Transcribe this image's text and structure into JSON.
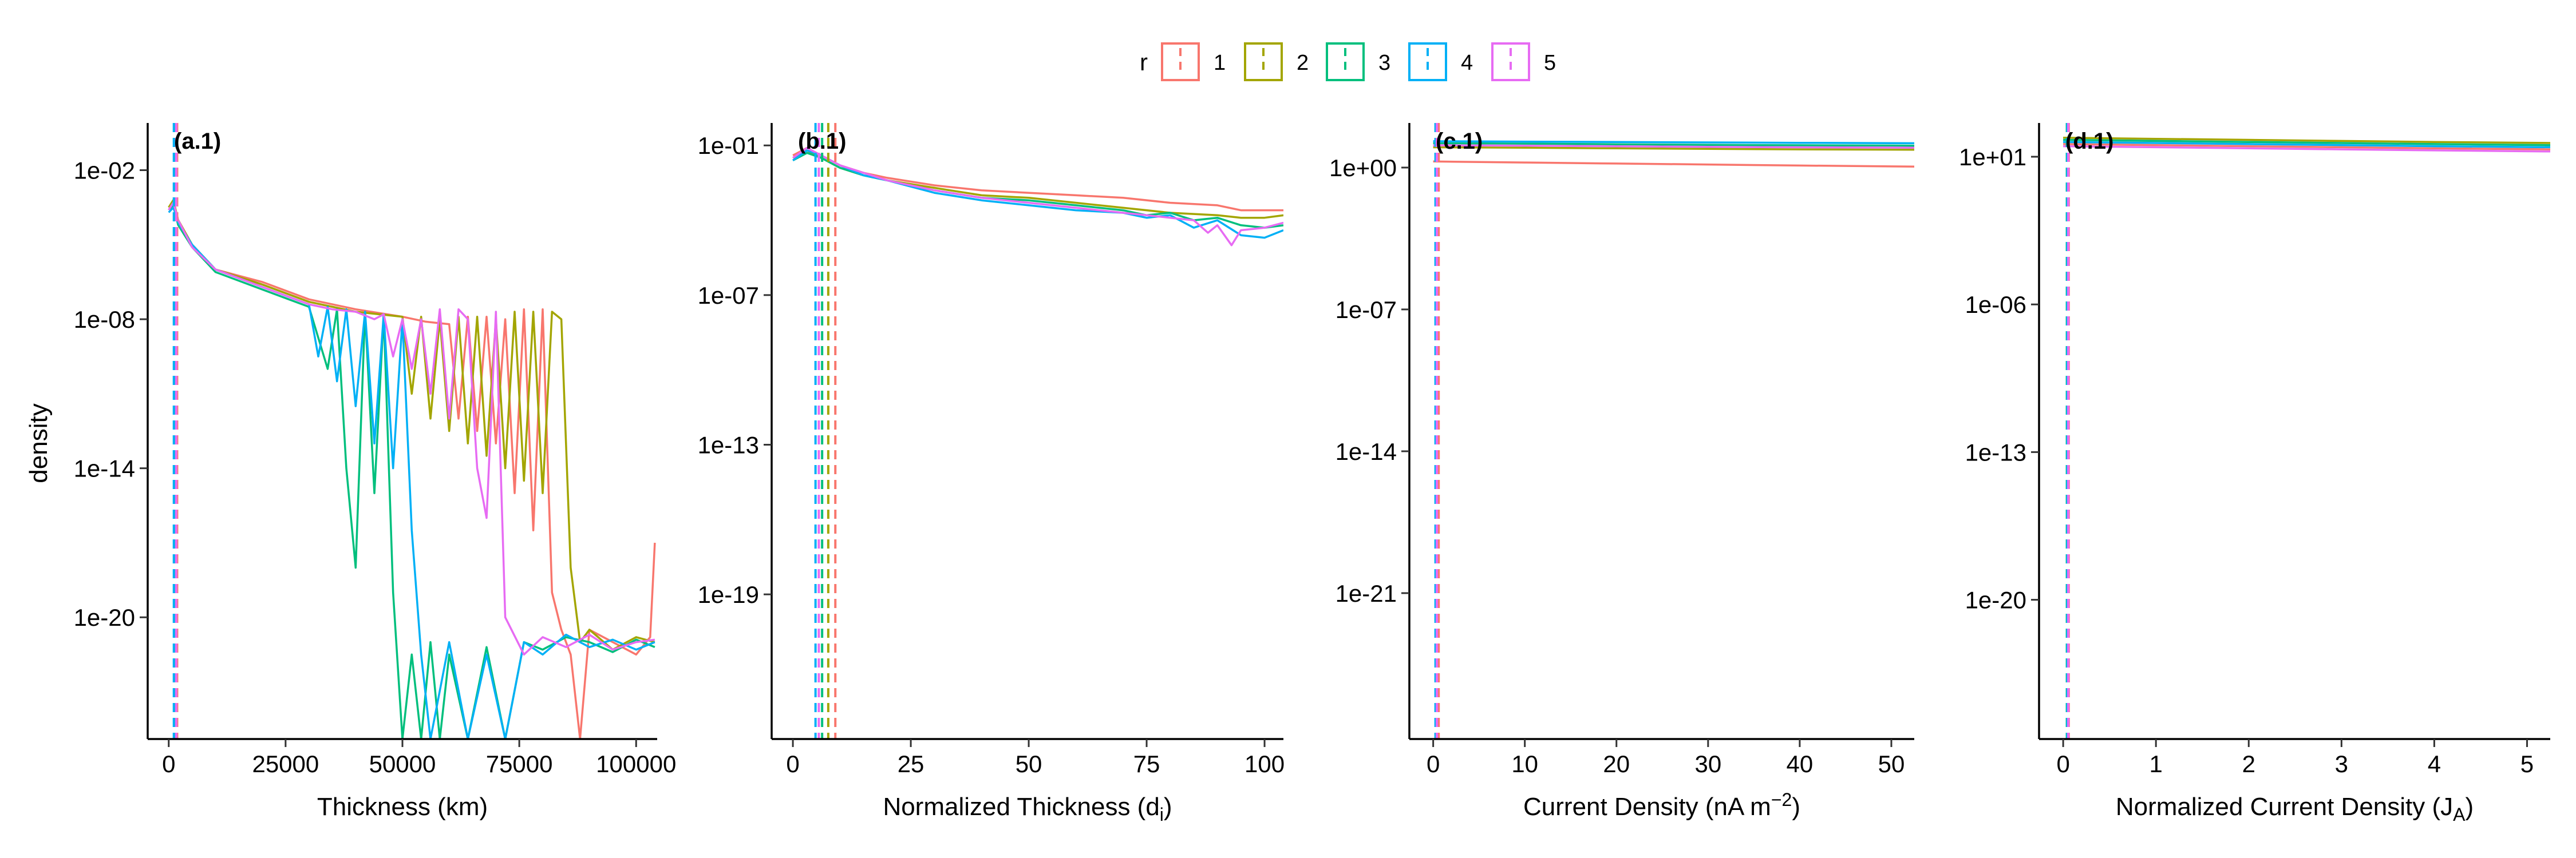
{
  "legend": {
    "title": "r",
    "entries": [
      {
        "label": "1",
        "color": "#F8766D"
      },
      {
        "label": "2",
        "color": "#A3A500"
      },
      {
        "label": "3",
        "color": "#00BF7D"
      },
      {
        "label": "4",
        "color": "#00B0F6"
      },
      {
        "label": "5",
        "color": "#E76BF3"
      }
    ],
    "position": "top-center",
    "key": "dashed vertical line in box"
  },
  "shared_ylabel": "density",
  "chart_data": [
    {
      "type": "line",
      "panel_label": "(a.1)",
      "xlabel": "Thickness (km)",
      "ylabel": "density",
      "y_scale": "log10",
      "xlim": [
        -4500,
        104500
      ],
      "ylim_log10": [
        -24.9,
        -0.1
      ],
      "x_ticks": [
        0,
        25000,
        50000,
        75000,
        100000
      ],
      "x_tick_labels": [
        "0",
        "25000",
        "50000",
        "75000",
        "100000"
      ],
      "y_ticks_log10": [
        -2,
        -8,
        -14,
        -20
      ],
      "y_tick_labels": [
        "1e-02",
        "1e-08",
        "1e-14",
        "1e-20"
      ],
      "vlines": [
        {
          "series": "1",
          "x": 1800
        },
        {
          "series": "2",
          "x": 1500
        },
        {
          "series": "3",
          "x": 1300
        },
        {
          "series": "4",
          "x": 1100
        },
        {
          "series": "5",
          "x": 1600
        }
      ],
      "series": [
        {
          "name": "1",
          "x": [
            0,
            1000,
            2000,
            5000,
            10000,
            20000,
            30000,
            40000,
            50000,
            55000,
            60000,
            62000,
            64000,
            66000,
            68000,
            70000,
            72000,
            74000,
            76000,
            78000,
            80000,
            82000,
            84000,
            86000,
            88000,
            90000,
            95000,
            100000,
            103000,
            104000
          ],
          "y_log10": [
            -3.6,
            -3.3,
            -4.0,
            -5.0,
            -6.0,
            -6.5,
            -7.2,
            -7.6,
            -7.9,
            -8.1,
            -8.2,
            -12.0,
            -7.9,
            -12.5,
            -7.9,
            -13.0,
            -8.0,
            -15.0,
            -7.6,
            -16.5,
            -7.6,
            -19.0,
            -20.5,
            -21.5,
            -24.9,
            -20.5,
            -21.0,
            -21.5,
            -20.8,
            -17.0
          ]
        },
        {
          "name": "2",
          "x": [
            0,
            1000,
            2000,
            5000,
            10000,
            20000,
            30000,
            40000,
            50000,
            52000,
            54000,
            56000,
            58000,
            60000,
            62000,
            64000,
            66000,
            68000,
            70000,
            72000,
            74000,
            76000,
            78000,
            80000,
            82000,
            84000,
            86000,
            88000,
            90000,
            95000,
            100000,
            104000
          ],
          "y_log10": [
            -3.5,
            -3.2,
            -4.0,
            -5.0,
            -6.0,
            -6.6,
            -7.3,
            -7.7,
            -7.9,
            -11.0,
            -7.9,
            -12.0,
            -8.0,
            -12.5,
            -7.9,
            -13.0,
            -7.9,
            -13.5,
            -8.0,
            -14.0,
            -7.7,
            -14.5,
            -7.7,
            -15.0,
            -7.7,
            -8.0,
            -18.0,
            -21.0,
            -20.5,
            -21.3,
            -20.8,
            -21.0
          ]
        },
        {
          "name": "3",
          "x": [
            0,
            1000,
            2000,
            5000,
            10000,
            20000,
            30000,
            34000,
            36000,
            38000,
            40000,
            42000,
            44000,
            46000,
            48000,
            50000,
            52000,
            54000,
            56000,
            58000,
            60000,
            64000,
            68000,
            72000,
            76000,
            80000,
            85000,
            90000,
            95000,
            100000,
            104000
          ],
          "y_log10": [
            -3.6,
            -3.4,
            -4.2,
            -5.1,
            -6.1,
            -6.8,
            -7.5,
            -10.0,
            -7.6,
            -14.0,
            -18.0,
            -7.7,
            -15.0,
            -7.8,
            -19.0,
            -24.9,
            -21.5,
            -24.9,
            -21.0,
            -24.9,
            -21.5,
            -24.9,
            -21.2,
            -24.9,
            -21.0,
            -21.3,
            -20.8,
            -21.0,
            -21.4,
            -20.9,
            -21.2
          ]
        },
        {
          "name": "4",
          "x": [
            0,
            1000,
            2000,
            5000,
            10000,
            20000,
            30000,
            32000,
            34000,
            36000,
            38000,
            40000,
            42000,
            44000,
            46000,
            48000,
            50000,
            52000,
            54000,
            56000,
            60000,
            64000,
            68000,
            72000,
            76000,
            80000,
            85000,
            90000,
            95000,
            100000,
            104000
          ],
          "y_log10": [
            -3.7,
            -3.5,
            -4.1,
            -5.0,
            -6.0,
            -6.7,
            -7.4,
            -9.5,
            -7.5,
            -10.5,
            -7.6,
            -11.5,
            -7.7,
            -13.0,
            -7.8,
            -14.0,
            -8.0,
            -16.5,
            -21.5,
            -24.9,
            -21.0,
            -24.9,
            -21.5,
            -24.9,
            -21.0,
            -21.5,
            -20.7,
            -21.2,
            -20.9,
            -21.3,
            -21.0
          ]
        },
        {
          "name": "5",
          "x": [
            0,
            1000,
            2000,
            5000,
            10000,
            20000,
            30000,
            35000,
            40000,
            44000,
            46000,
            48000,
            50000,
            52000,
            54000,
            56000,
            58000,
            60000,
            62000,
            64000,
            66000,
            68000,
            70000,
            72000,
            76000,
            80000,
            85000,
            90000,
            95000,
            100000,
            104000
          ],
          "y_log10": [
            -3.6,
            -3.3,
            -4.0,
            -5.1,
            -6.0,
            -6.7,
            -7.4,
            -7.6,
            -7.7,
            -8.0,
            -7.8,
            -9.5,
            -8.0,
            -10.0,
            -8.0,
            -11.0,
            -7.6,
            -12.0,
            -7.6,
            -8.0,
            -14.0,
            -16.0,
            -7.7,
            -20.0,
            -21.5,
            -20.8,
            -21.2,
            -20.7,
            -21.3,
            -21.0,
            -20.9
          ]
        }
      ]
    },
    {
      "type": "line",
      "panel_label": "(b.1)",
      "xlabel": "Normalized Thickness (d",
      "xlabel_subscript": "i",
      "xlabel_suffix": ")",
      "ylabel": "",
      "y_scale": "log10",
      "xlim": [
        -4.5,
        104
      ],
      "ylim_log10": [
        -24.8,
        -0.1
      ],
      "x_ticks": [
        0,
        25,
        50,
        75,
        100
      ],
      "x_tick_labels": [
        "0",
        "25",
        "50",
        "75",
        "100"
      ],
      "y_ticks_log10": [
        -1,
        -7,
        -13,
        -19
      ],
      "y_tick_labels": [
        "1e-01",
        "1e-07",
        "1e-13",
        "1e-19"
      ],
      "vlines": [
        {
          "series": "1",
          "x": 9.0
        },
        {
          "series": "2",
          "x": 7.5
        },
        {
          "series": "3",
          "x": 6.2
        },
        {
          "series": "4",
          "x": 4.8
        },
        {
          "series": "5",
          "x": 5.5
        }
      ],
      "series": [
        {
          "name": "1",
          "x": [
            0,
            3,
            6,
            10,
            15,
            20,
            30,
            40,
            50,
            60,
            70,
            80,
            90,
            95,
            100,
            104
          ],
          "y_log10": [
            -1.4,
            -1.1,
            -1.4,
            -1.8,
            -2.1,
            -2.3,
            -2.6,
            -2.8,
            -2.9,
            -3.0,
            -3.1,
            -3.3,
            -3.4,
            -3.6,
            -3.6,
            -3.6
          ]
        },
        {
          "name": "2",
          "x": [
            0,
            3,
            6,
            10,
            15,
            20,
            30,
            40,
            50,
            60,
            70,
            80,
            90,
            95,
            100,
            104
          ],
          "y_log10": [
            -1.5,
            -1.2,
            -1.5,
            -1.9,
            -2.2,
            -2.4,
            -2.7,
            -3.0,
            -3.1,
            -3.3,
            -3.5,
            -3.7,
            -3.8,
            -3.9,
            -3.9,
            -3.8
          ]
        },
        {
          "name": "3",
          "x": [
            0,
            3,
            6,
            10,
            15,
            20,
            30,
            40,
            50,
            60,
            70,
            75,
            80,
            85,
            90,
            95,
            100,
            104
          ],
          "y_log10": [
            -1.6,
            -1.3,
            -1.5,
            -1.9,
            -2.2,
            -2.4,
            -2.8,
            -3.1,
            -3.2,
            -3.4,
            -3.6,
            -3.8,
            -3.7,
            -4.0,
            -3.9,
            -4.2,
            -4.3,
            -4.2
          ]
        },
        {
          "name": "4",
          "x": [
            0,
            3,
            6,
            10,
            15,
            20,
            30,
            40,
            50,
            60,
            70,
            75,
            80,
            85,
            90,
            95,
            100,
            104
          ],
          "y_log10": [
            -1.6,
            -1.2,
            -1.4,
            -1.8,
            -2.2,
            -2.4,
            -2.9,
            -3.2,
            -3.4,
            -3.6,
            -3.7,
            -3.9,
            -3.8,
            -4.3,
            -4.0,
            -4.6,
            -4.7,
            -4.4
          ]
        },
        {
          "name": "5",
          "x": [
            0,
            3,
            6,
            10,
            15,
            20,
            30,
            40,
            50,
            60,
            70,
            75,
            80,
            85,
            88,
            90,
            93,
            95,
            100,
            104
          ],
          "y_log10": [
            -1.5,
            -1.1,
            -1.4,
            -1.8,
            -2.1,
            -2.4,
            -2.8,
            -3.1,
            -3.3,
            -3.5,
            -3.7,
            -3.8,
            -3.9,
            -4.0,
            -4.5,
            -4.2,
            -5.0,
            -4.4,
            -4.3,
            -4.1
          ]
        }
      ]
    },
    {
      "type": "line",
      "panel_label": "(c.1)",
      "xlabel": "Current Density (nA m",
      "xlabel_superscript": "−2",
      "xlabel_suffix": ")",
      "ylabel": "",
      "y_scale": "log10",
      "xlim": [
        -2.6,
        52.5
      ],
      "ylim_log10": [
        -28.2,
        2.2
      ],
      "x_ticks": [
        0,
        10,
        20,
        30,
        40,
        50
      ],
      "x_tick_labels": [
        "0",
        "10",
        "20",
        "30",
        "40",
        "50"
      ],
      "y_ticks_log10": [
        0,
        -7,
        -14,
        -21
      ],
      "y_tick_labels": [
        "1e+00",
        "1e-07",
        "1e-14",
        "1e-21"
      ],
      "vlines": [
        {
          "series": "1",
          "x": 0.6
        },
        {
          "series": "2",
          "x": 0.35
        },
        {
          "series": "3",
          "x": 0.3
        },
        {
          "series": "4",
          "x": 0.25
        },
        {
          "series": "5",
          "x": 0.4
        }
      ],
      "series": [
        {
          "name": "1",
          "x": [
            0,
            10,
            20,
            30,
            40,
            52.5
          ],
          "y_log10": [
            0.3,
            0.25,
            0.2,
            0.15,
            0.1,
            0.05
          ]
        },
        {
          "name": "2",
          "x": [
            0,
            10,
            20,
            30,
            40,
            52.5
          ],
          "y_log10": [
            1.0,
            0.98,
            0.95,
            0.92,
            0.9,
            0.88
          ]
        },
        {
          "name": "3",
          "x": [
            0,
            10,
            20,
            30,
            40,
            52.5
          ],
          "y_log10": [
            1.2,
            1.18,
            1.15,
            1.12,
            1.1,
            1.08
          ]
        },
        {
          "name": "4",
          "x": [
            0,
            10,
            20,
            30,
            40,
            52.5
          ],
          "y_log10": [
            1.3,
            1.28,
            1.26,
            1.24,
            1.22,
            1.2
          ]
        },
        {
          "name": "5",
          "x": [
            0,
            10,
            20,
            30,
            40,
            52.5
          ],
          "y_log10": [
            1.1,
            1.08,
            1.05,
            1.02,
            1.0,
            0.98
          ]
        }
      ]
    },
    {
      "type": "line",
      "panel_label": "(d.1)",
      "xlabel": "Normalized Current Density (J",
      "xlabel_subscript": "A",
      "xlabel_suffix": ")",
      "ylabel": "",
      "y_scale": "log10",
      "xlim": [
        -0.26,
        5.25
      ],
      "ylim_log10": [
        -26.6,
        2.6
      ],
      "x_ticks": [
        0,
        1,
        2,
        3,
        4,
        5
      ],
      "x_tick_labels": [
        "0",
        "1",
        "2",
        "3",
        "4",
        "5"
      ],
      "y_ticks_log10": [
        1,
        -6,
        -13,
        -20
      ],
      "y_tick_labels": [
        "1e+01",
        "1e-06",
        "1e-13",
        "1e-20"
      ],
      "vlines": [
        {
          "series": "1",
          "x": 0.06
        },
        {
          "series": "2",
          "x": 0.05
        },
        {
          "series": "3",
          "x": 0.04
        },
        {
          "series": "4",
          "x": 0.045
        },
        {
          "series": "5",
          "x": 0.055
        }
      ],
      "series": [
        {
          "name": "1",
          "x": [
            0,
            1,
            2,
            3,
            4,
            5.25
          ],
          "y_log10": [
            1.6,
            1.55,
            1.5,
            1.45,
            1.4,
            1.35
          ]
        },
        {
          "name": "2",
          "x": [
            0,
            1,
            2,
            3,
            4,
            5.25
          ],
          "y_log10": [
            1.9,
            1.85,
            1.8,
            1.75,
            1.7,
            1.65
          ]
        },
        {
          "name": "3",
          "x": [
            0,
            1,
            2,
            3,
            4,
            5.25
          ],
          "y_log10": [
            1.8,
            1.75,
            1.7,
            1.65,
            1.6,
            1.55
          ]
        },
        {
          "name": "4",
          "x": [
            0,
            1,
            2,
            3,
            4,
            5.25
          ],
          "y_log10": [
            1.7,
            1.65,
            1.6,
            1.55,
            1.5,
            1.45
          ]
        },
        {
          "name": "5",
          "x": [
            0,
            1,
            2,
            3,
            4,
            5.25
          ],
          "y_log10": [
            1.5,
            1.45,
            1.4,
            1.35,
            1.3,
            1.25
          ]
        }
      ]
    }
  ]
}
